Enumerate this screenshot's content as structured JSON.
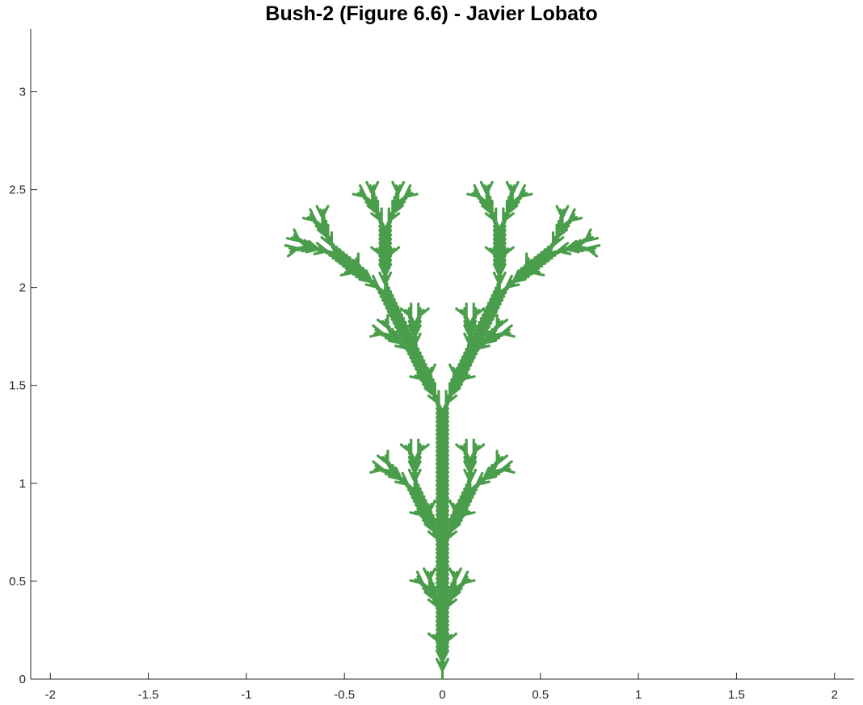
{
  "chart_data": {
    "type": "line",
    "title": "Bush-2 (Figure 6.6) - Javier Lobato",
    "xlabel": "",
    "ylabel": "",
    "xlim": [
      -2.1,
      2.1
    ],
    "ylim": [
      0,
      3.32
    ],
    "x_ticks": [
      -2,
      -1.5,
      -1,
      -0.5,
      0,
      0.5,
      1,
      1.5,
      2
    ],
    "x_tick_labels": [
      "-2",
      "-1.5",
      "-1",
      "-0.5",
      "0",
      "0.5",
      "1",
      "1.5",
      "2"
    ],
    "y_ticks": [
      0,
      0.5,
      1,
      1.5,
      2,
      2.5,
      3
    ],
    "y_tick_labels": [
      "0",
      "0.5",
      "1",
      "1.5",
      "2",
      "2.5",
      "3"
    ],
    "grid": false,
    "line_color": "#4a9d4a",
    "lsystem": {
      "axiom": "Y",
      "rules": {
        "X": "X[-FFF][+FFF]FX",
        "Y": "YFX[+Y][-Y]"
      },
      "iterations": 6,
      "angle_deg": 25.7,
      "step_length": 0.0217,
      "start": [
        0,
        0
      ],
      "heading_deg": 90
    }
  }
}
